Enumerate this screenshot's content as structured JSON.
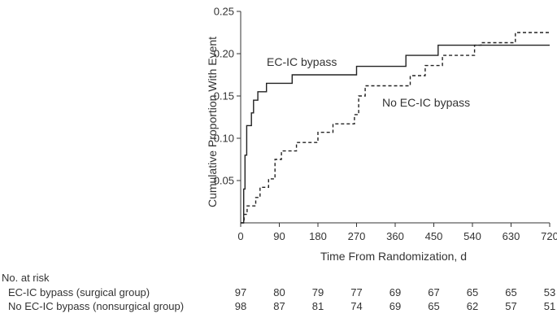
{
  "chart_data": {
    "type": "line",
    "step": true,
    "ylabel": "Cumulative Proportion With Event",
    "xlabel": "Time From Randomization, d",
    "xlim": [
      0,
      720
    ],
    "ylim": [
      0,
      0.25
    ],
    "x_ticks": [
      "0",
      "90",
      "180",
      "270",
      "360",
      "450",
      "540",
      "630",
      "720"
    ],
    "y_ticks": [
      "0.05",
      "0.10",
      "0.15",
      "0.20",
      "0.25"
    ],
    "grid": false,
    "series": [
      {
        "name": "EC-IC bypass",
        "style": "solid",
        "color": "#222222",
        "points": [
          [
            0,
            0
          ],
          [
            7,
            0.04
          ],
          [
            10,
            0.08
          ],
          [
            14,
            0.115
          ],
          [
            25,
            0.13
          ],
          [
            30,
            0.145
          ],
          [
            40,
            0.155
          ],
          [
            60,
            0.165
          ],
          [
            120,
            0.175
          ],
          [
            270,
            0.185
          ],
          [
            385,
            0.198
          ],
          [
            460,
            0.21
          ],
          [
            720,
            0.21
          ]
        ]
      },
      {
        "name": "No EC-IC bypass",
        "style": "dashed",
        "color": "#222222",
        "points": [
          [
            0,
            0
          ],
          [
            8,
            0.01
          ],
          [
            15,
            0.02
          ],
          [
            35,
            0.03
          ],
          [
            45,
            0.042
          ],
          [
            65,
            0.052
          ],
          [
            80,
            0.075
          ],
          [
            95,
            0.085
          ],
          [
            130,
            0.095
          ],
          [
            180,
            0.107
          ],
          [
            215,
            0.117
          ],
          [
            265,
            0.128
          ],
          [
            275,
            0.15
          ],
          [
            290,
            0.162
          ],
          [
            395,
            0.174
          ],
          [
            430,
            0.186
          ],
          [
            470,
            0.198
          ],
          [
            545,
            0.21
          ],
          [
            560,
            0.213
          ],
          [
            640,
            0.225
          ],
          [
            720,
            0.225
          ]
        ]
      }
    ]
  },
  "risk_table": {
    "header": "No. at risk",
    "times": [
      0,
      90,
      180,
      270,
      360,
      450,
      540,
      630,
      720
    ],
    "rows": [
      {
        "label": "EC-IC bypass (surgical group)",
        "values": [
          "97",
          "80",
          "79",
          "77",
          "69",
          "67",
          "65",
          "65",
          "53"
        ]
      },
      {
        "label": "No EC-IC bypass (nonsurgical group)",
        "values": [
          "98",
          "87",
          "81",
          "74",
          "69",
          "65",
          "62",
          "57",
          "51"
        ]
      }
    ]
  }
}
